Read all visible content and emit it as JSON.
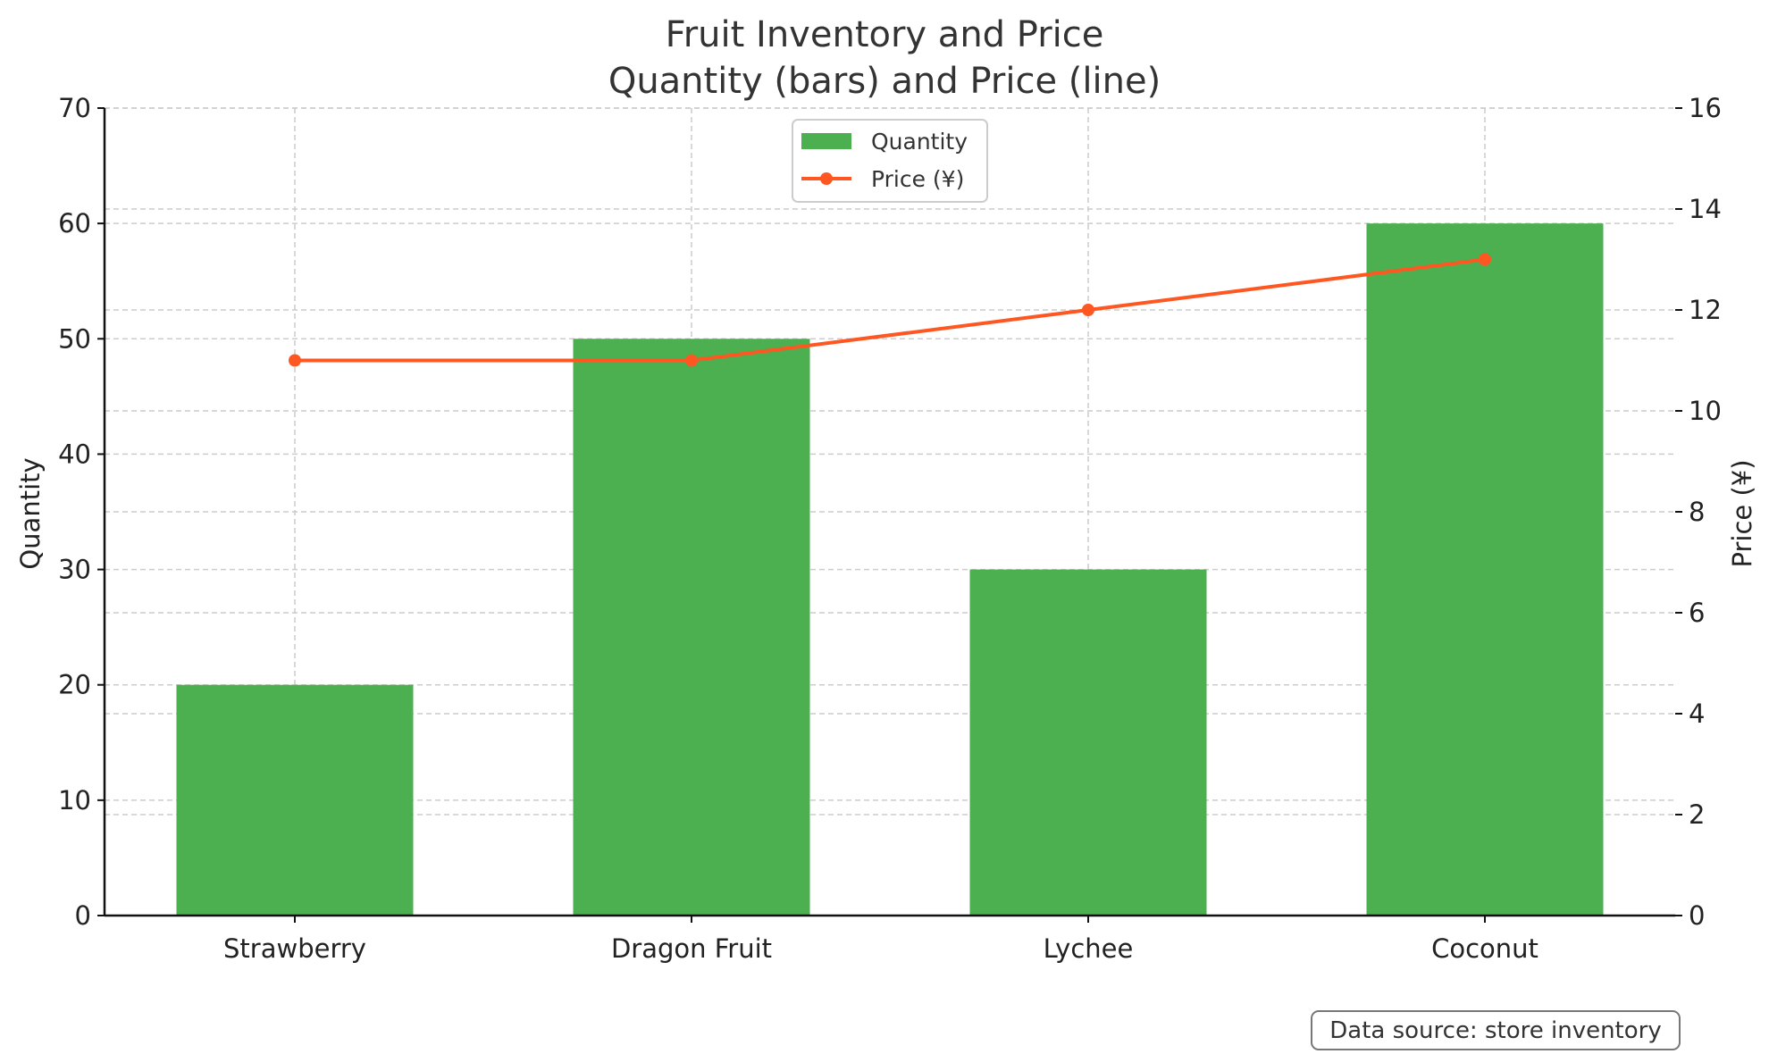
{
  "chart_data": {
    "type": "bar",
    "title": "Fruit Inventory and Price",
    "subtitle": "Quantity (bars) and Price (line)",
    "categories": [
      "Strawberry",
      "Dragon Fruit",
      "Lychee",
      "Coconut"
    ],
    "series": [
      {
        "name": "Quantity",
        "type": "bar",
        "axis": "left",
        "color": "#4caf50",
        "values": [
          20,
          50,
          30,
          60
        ]
      },
      {
        "name": "Price (¥)",
        "type": "line",
        "axis": "right",
        "color": "#ff5722",
        "values": [
          11,
          11,
          12,
          13
        ]
      }
    ],
    "ylabel": "Quantity",
    "y2label": "Price (¥)",
    "ylim": [
      0,
      70
    ],
    "y2lim": [
      0,
      16
    ],
    "yticks": [
      "0",
      "10",
      "20",
      "30",
      "40",
      "50",
      "60",
      "70"
    ],
    "y2ticks": [
      "0",
      "2",
      "4",
      "6",
      "8",
      "10",
      "12",
      "14",
      "16"
    ],
    "grid": true,
    "legend_position": "top-center",
    "annotation": "Data source: store inventory"
  }
}
